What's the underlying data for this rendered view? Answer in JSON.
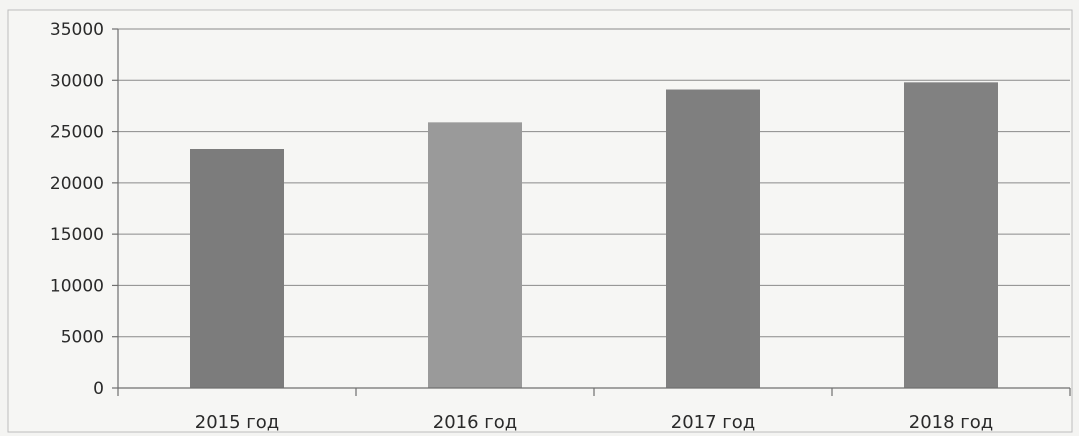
{
  "chart_data": {
    "type": "bar",
    "categories": [
      "2015 год",
      "2016 год",
      "2017 год",
      "2018 год"
    ],
    "values": [
      23300,
      25900,
      29100,
      29800
    ],
    "yticks": [
      "0",
      "5000",
      "10000",
      "15000",
      "20000",
      "25000",
      "30000",
      "35000"
    ],
    "ylim": [
      0,
      35000
    ],
    "ystep": 5000,
    "grid": true,
    "legend": "none",
    "colors": {
      "bars": [
        "#7c7c7c",
        "#9a9a9a",
        "#7f7f7f",
        "#818181"
      ],
      "grid": "#8a8a8a",
      "text": "#2a2a2a"
    }
  }
}
